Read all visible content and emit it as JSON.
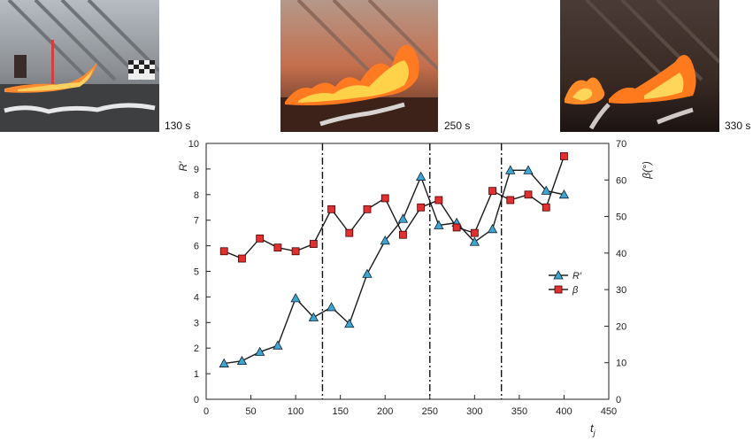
{
  "photos": [
    {
      "caption": "130 s",
      "t": 130
    },
    {
      "caption": "250 s",
      "t": 250
    },
    {
      "caption": "330 s",
      "t": 330
    }
  ],
  "chart_data": {
    "type": "line",
    "xlabel": "t",
    "xlabel_sub": "j",
    "ylabel_left": "R′",
    "ylabel_right": "β(°)",
    "xlim": [
      0,
      450
    ],
    "ylim_left": [
      0,
      10
    ],
    "ylim_right": [
      0,
      70
    ],
    "xticks": [
      0,
      50,
      100,
      150,
      200,
      250,
      300,
      350,
      400,
      450
    ],
    "yticks_left": [
      0,
      1,
      2,
      3,
      4,
      5,
      6,
      7,
      8,
      9,
      10
    ],
    "yticks_right": [
      0,
      10,
      20,
      30,
      40,
      50,
      60,
      70
    ],
    "vlines": [
      130,
      250,
      330
    ],
    "grid": false,
    "legend_position": "right-middle",
    "series": [
      {
        "name": "R′",
        "axis": "left",
        "marker": "triangle",
        "color": "#3da5d0",
        "x": [
          20,
          40,
          60,
          80,
          100,
          120,
          140,
          160,
          180,
          200,
          220,
          240,
          260,
          280,
          300,
          320,
          340,
          360,
          380,
          400
        ],
        "y": [
          1.4,
          1.5,
          1.85,
          2.1,
          3.95,
          3.2,
          3.6,
          2.95,
          4.9,
          6.2,
          7.05,
          8.7,
          6.8,
          6.9,
          6.15,
          6.65,
          8.95,
          8.95,
          8.15,
          8.0
        ]
      },
      {
        "name": "β",
        "axis": "right",
        "marker": "square",
        "color": "#e03030",
        "x": [
          20,
          40,
          60,
          80,
          100,
          120,
          140,
          160,
          180,
          200,
          220,
          240,
          260,
          280,
          300,
          320,
          340,
          360,
          380,
          400
        ],
        "y": [
          40.5,
          38.5,
          44,
          41.5,
          40.5,
          42.5,
          52,
          45.5,
          52,
          55,
          45,
          52.5,
          54.5,
          47,
          45.5,
          57,
          54.5,
          56,
          52.5,
          66.5
        ]
      }
    ]
  }
}
